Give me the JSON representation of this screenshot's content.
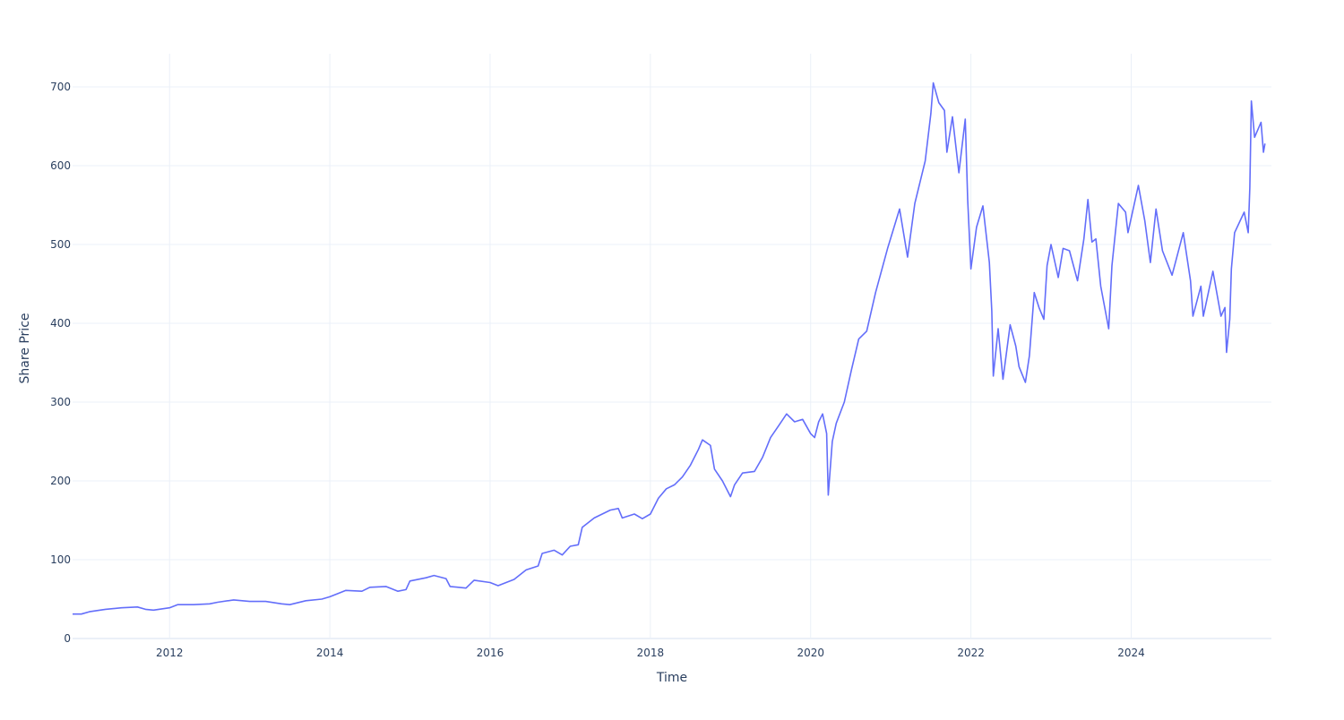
{
  "chart_data": {
    "type": "line",
    "title": "",
    "xlabel": "Time",
    "ylabel": "Share Price",
    "xlim": [
      2010.79,
      2025.75
    ],
    "ylim": [
      0,
      742
    ],
    "grid": true,
    "x_ticks": [
      {
        "value": 2012,
        "label": "2012"
      },
      {
        "value": 2014,
        "label": "2014"
      },
      {
        "value": 2016,
        "label": "2016"
      },
      {
        "value": 2018,
        "label": "2018"
      },
      {
        "value": 2020,
        "label": "2020"
      },
      {
        "value": 2022,
        "label": "2022"
      },
      {
        "value": 2024,
        "label": "2024"
      }
    ],
    "y_ticks": [
      {
        "value": 0,
        "label": "0"
      },
      {
        "value": 100,
        "label": "100"
      },
      {
        "value": 200,
        "label": "200"
      },
      {
        "value": 300,
        "label": "300"
      },
      {
        "value": 400,
        "label": "400"
      },
      {
        "value": 500,
        "label": "500"
      },
      {
        "value": 600,
        "label": "600"
      },
      {
        "value": 700,
        "label": "700"
      }
    ],
    "colors": {
      "line": "#636efa",
      "grid": "#ebf0f8",
      "text": "#2a3f5f"
    },
    "series": [
      {
        "name": "Share Price",
        "points": [
          [
            2010.79,
            31
          ],
          [
            2010.9,
            31
          ],
          [
            2011.0,
            34
          ],
          [
            2011.2,
            37
          ],
          [
            2011.4,
            39
          ],
          [
            2011.6,
            40
          ],
          [
            2011.7,
            37
          ],
          [
            2011.8,
            36
          ],
          [
            2012.0,
            39
          ],
          [
            2012.1,
            43
          ],
          [
            2012.3,
            43
          ],
          [
            2012.5,
            44
          ],
          [
            2012.6,
            46
          ],
          [
            2012.8,
            49
          ],
          [
            2013.0,
            47
          ],
          [
            2013.2,
            47
          ],
          [
            2013.4,
            44
          ],
          [
            2013.5,
            43
          ],
          [
            2013.7,
            48
          ],
          [
            2013.9,
            50
          ],
          [
            2014.0,
            53
          ],
          [
            2014.2,
            61
          ],
          [
            2014.4,
            60
          ],
          [
            2014.5,
            65
          ],
          [
            2014.7,
            66
          ],
          [
            2014.85,
            60
          ],
          [
            2014.95,
            62
          ],
          [
            2015.0,
            73
          ],
          [
            2015.2,
            77
          ],
          [
            2015.3,
            80
          ],
          [
            2015.45,
            76
          ],
          [
            2015.5,
            66
          ],
          [
            2015.7,
            64
          ],
          [
            2015.8,
            74
          ],
          [
            2016.0,
            71
          ],
          [
            2016.1,
            67
          ],
          [
            2016.3,
            75
          ],
          [
            2016.45,
            87
          ],
          [
            2016.6,
            92
          ],
          [
            2016.65,
            108
          ],
          [
            2016.8,
            112
          ],
          [
            2016.9,
            106
          ],
          [
            2017.0,
            117
          ],
          [
            2017.1,
            119
          ],
          [
            2017.15,
            141
          ],
          [
            2017.3,
            153
          ],
          [
            2017.5,
            163
          ],
          [
            2017.6,
            165
          ],
          [
            2017.65,
            153
          ],
          [
            2017.8,
            158
          ],
          [
            2017.9,
            152
          ],
          [
            2018.0,
            158
          ],
          [
            2018.1,
            178
          ],
          [
            2018.2,
            190
          ],
          [
            2018.3,
            195
          ],
          [
            2018.4,
            205
          ],
          [
            2018.5,
            220
          ],
          [
            2018.6,
            240
          ],
          [
            2018.65,
            252
          ],
          [
            2018.75,
            245
          ],
          [
            2018.8,
            215
          ],
          [
            2018.9,
            200
          ],
          [
            2019.0,
            180
          ],
          [
            2019.05,
            195
          ],
          [
            2019.15,
            210
          ],
          [
            2019.3,
            212
          ],
          [
            2019.4,
            230
          ],
          [
            2019.5,
            255
          ],
          [
            2019.6,
            270
          ],
          [
            2019.7,
            285
          ],
          [
            2019.8,
            275
          ],
          [
            2019.9,
            278
          ],
          [
            2020.0,
            260
          ],
          [
            2020.05,
            255
          ],
          [
            2020.1,
            275
          ],
          [
            2020.15,
            285
          ],
          [
            2020.2,
            260
          ],
          [
            2020.22,
            182
          ],
          [
            2020.27,
            250
          ],
          [
            2020.32,
            273
          ],
          [
            2020.42,
            300
          ],
          [
            2020.51,
            341
          ],
          [
            2020.6,
            380
          ],
          [
            2020.7,
            390
          ],
          [
            2020.81,
            439
          ],
          [
            2020.96,
            495
          ],
          [
            2021.11,
            545
          ],
          [
            2021.21,
            484
          ],
          [
            2021.3,
            552
          ],
          [
            2021.43,
            606
          ],
          [
            2021.5,
            666
          ],
          [
            2021.53,
            705
          ],
          [
            2021.6,
            680
          ],
          [
            2021.67,
            670
          ],
          [
            2021.7,
            617
          ],
          [
            2021.77,
            662
          ],
          [
            2021.85,
            591
          ],
          [
            2021.93,
            659
          ],
          [
            2021.96,
            557
          ],
          [
            2022.0,
            469
          ],
          [
            2022.07,
            522
          ],
          [
            2022.15,
            549
          ],
          [
            2022.23,
            477
          ],
          [
            2022.26,
            416
          ],
          [
            2022.28,
            333
          ],
          [
            2022.34,
            393
          ],
          [
            2022.4,
            329
          ],
          [
            2022.49,
            398
          ],
          [
            2022.56,
            371
          ],
          [
            2022.6,
            345
          ],
          [
            2022.68,
            325
          ],
          [
            2022.73,
            359
          ],
          [
            2022.79,
            439
          ],
          [
            2022.85,
            420
          ],
          [
            2022.91,
            405
          ],
          [
            2022.95,
            473
          ],
          [
            2023.0,
            500
          ],
          [
            2023.09,
            458
          ],
          [
            2023.15,
            495
          ],
          [
            2023.23,
            492
          ],
          [
            2023.33,
            454
          ],
          [
            2023.41,
            507
          ],
          [
            2023.46,
            557
          ],
          [
            2023.51,
            503
          ],
          [
            2023.56,
            507
          ],
          [
            2023.62,
            447
          ],
          [
            2023.72,
            393
          ],
          [
            2023.76,
            473
          ],
          [
            2023.84,
            552
          ],
          [
            2023.93,
            541
          ],
          [
            2023.96,
            515
          ],
          [
            2024.09,
            575
          ],
          [
            2024.17,
            530
          ],
          [
            2024.24,
            477
          ],
          [
            2024.31,
            545
          ],
          [
            2024.39,
            492
          ],
          [
            2024.51,
            461
          ],
          [
            2024.65,
            515
          ],
          [
            2024.74,
            454
          ],
          [
            2024.77,
            409
          ],
          [
            2024.87,
            447
          ],
          [
            2024.9,
            409
          ],
          [
            2025.02,
            466
          ],
          [
            2025.12,
            409
          ],
          [
            2025.17,
            420
          ],
          [
            2025.19,
            363
          ],
          [
            2025.23,
            405
          ],
          [
            2025.25,
            469
          ],
          [
            2025.29,
            515
          ],
          [
            2025.41,
            541
          ],
          [
            2025.46,
            515
          ],
          [
            2025.48,
            572
          ],
          [
            2025.5,
            682
          ],
          [
            2025.54,
            636
          ],
          [
            2025.62,
            655
          ],
          [
            2025.65,
            617
          ],
          [
            2025.67,
            628
          ]
        ]
      }
    ]
  }
}
